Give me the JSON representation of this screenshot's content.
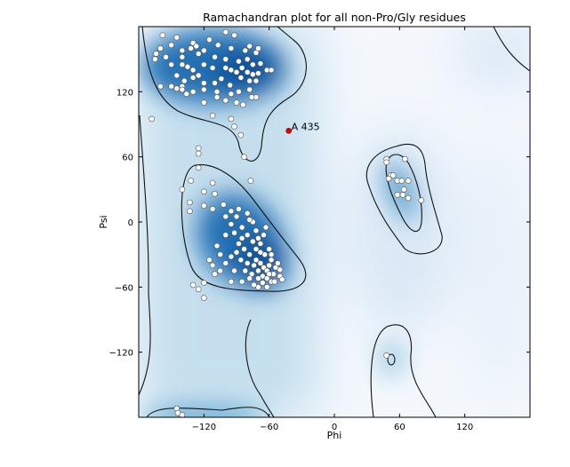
{
  "chart_data": {
    "type": "scatter",
    "title": "Ramachandran plot for all non-Pro/Gly residues",
    "xlabel": "Phi",
    "ylabel": "Psi",
    "xlim": [
      -180,
      180
    ],
    "ylim": [
      -180,
      180
    ],
    "xticks": [
      -120,
      -60,
      0,
      60,
      120
    ],
    "yticks": [
      120,
      60,
      0,
      -60,
      -120
    ],
    "xtick_labels": [
      "−120",
      "−60",
      "0",
      "60",
      "120"
    ],
    "ytick_labels": [
      "120",
      "60",
      "0",
      "−60",
      "−120"
    ],
    "grid": false,
    "background": "density heatmap (Blues) with contour lines",
    "colors": {
      "point_fill": "#ffffff",
      "point_edge": "#555555",
      "outlier": "#e00000",
      "heat": "#08519c",
      "contour": "#000000"
    },
    "outliers": [
      {
        "label": "A 435",
        "phi": -42,
        "psi": 84
      }
    ],
    "points": [
      [
        -158,
        172
      ],
      [
        -145,
        170
      ],
      [
        -130,
        165
      ],
      [
        -115,
        168
      ],
      [
        -92,
        172
      ],
      [
        -100,
        175
      ],
      [
        -160,
        160
      ],
      [
        -150,
        163
      ],
      [
        -140,
        158
      ],
      [
        -132,
        160
      ],
      [
        -127,
        162
      ],
      [
        -120,
        158
      ],
      [
        -107,
        163
      ],
      [
        -95,
        160
      ],
      [
        -82,
        158
      ],
      [
        -72,
        156
      ],
      [
        -70,
        160
      ],
      [
        -78,
        162
      ],
      [
        -164,
        155
      ],
      [
        -165,
        150
      ],
      [
        -155,
        152
      ],
      [
        -140,
        152
      ],
      [
        -125,
        155
      ],
      [
        -110,
        152
      ],
      [
        -100,
        150
      ],
      [
        -88,
        148
      ],
      [
        -80,
        150
      ],
      [
        -75,
        145
      ],
      [
        -68,
        146
      ],
      [
        -62,
        140
      ],
      [
        -58,
        140
      ],
      [
        -150,
        145
      ],
      [
        -140,
        145
      ],
      [
        -135,
        143
      ],
      [
        -130,
        140
      ],
      [
        -120,
        145
      ],
      [
        -112,
        142
      ],
      [
        -100,
        142
      ],
      [
        -95,
        140
      ],
      [
        -90,
        138
      ],
      [
        -85,
        142
      ],
      [
        -80,
        138
      ],
      [
        -75,
        136
      ],
      [
        -70,
        137
      ],
      [
        -145,
        135
      ],
      [
        -138,
        130
      ],
      [
        -130,
        133
      ],
      [
        -125,
        135
      ],
      [
        -120,
        128
      ],
      [
        -110,
        128
      ],
      [
        -104,
        132
      ],
      [
        -96,
        126
      ],
      [
        -86,
        133
      ],
      [
        -78,
        130
      ],
      [
        -72,
        130
      ],
      [
        -140,
        125
      ],
      [
        -130,
        120
      ],
      [
        -120,
        122
      ],
      [
        -108,
        120
      ],
      [
        -95,
        118
      ],
      [
        -88,
        120
      ],
      [
        -78,
        122
      ],
      [
        -72,
        115
      ],
      [
        -160,
        125
      ],
      [
        -150,
        125
      ],
      [
        -145,
        123
      ],
      [
        -140,
        122
      ],
      [
        -136,
        118
      ],
      [
        -120,
        110
      ],
      [
        -108,
        115
      ],
      [
        -100,
        112
      ],
      [
        -90,
        110
      ],
      [
        -84,
        108
      ],
      [
        -76,
        115
      ],
      [
        -112,
        98
      ],
      [
        -95,
        95
      ],
      [
        -92,
        88
      ],
      [
        -86,
        80
      ],
      [
        -168,
        95
      ],
      [
        -83,
        60
      ],
      [
        -125,
        68
      ],
      [
        -125,
        63
      ],
      [
        -125,
        50
      ],
      [
        -77,
        38
      ],
      [
        -132,
        38
      ],
      [
        -112,
        36
      ],
      [
        -140,
        30
      ],
      [
        -120,
        28
      ],
      [
        -110,
        26
      ],
      [
        -133,
        18
      ],
      [
        -120,
        15
      ],
      [
        -133,
        10
      ],
      [
        -112,
        12
      ],
      [
        -102,
        16
      ],
      [
        -95,
        10
      ],
      [
        -100,
        5
      ],
      [
        -90,
        5
      ],
      [
        -88,
        12
      ],
      [
        -80,
        8
      ],
      [
        -75,
        0
      ],
      [
        -130,
        -58
      ],
      [
        -125,
        -62
      ],
      [
        -120,
        -56
      ],
      [
        -120,
        -70
      ],
      [
        -85,
        -55
      ],
      [
        -70,
        -60
      ],
      [
        -58,
        -55
      ],
      [
        -50,
        -50
      ],
      [
        -48,
        -53
      ],
      [
        -92,
        -45
      ],
      [
        -100,
        -38
      ],
      [
        -105,
        -45
      ],
      [
        -95,
        -32
      ],
      [
        -83,
        -25
      ],
      [
        -75,
        -18
      ],
      [
        -68,
        -20
      ],
      [
        -60,
        -25
      ],
      [
        -78,
        -30
      ],
      [
        -88,
        -20
      ],
      [
        -92,
        -10
      ],
      [
        -100,
        -12
      ],
      [
        -95,
        -2
      ],
      [
        -85,
        -5
      ],
      [
        -80,
        -12
      ],
      [
        -72,
        -8
      ],
      [
        -65,
        -12
      ],
      [
        -63,
        -5
      ],
      [
        -78,
        2
      ],
      [
        -108,
        -22
      ],
      [
        -115,
        -35
      ],
      [
        -112,
        -40
      ],
      [
        -72,
        -35
      ],
      [
        -68,
        -38
      ],
      [
        -65,
        -42
      ],
      [
        -62,
        -45
      ],
      [
        -60,
        -40
      ],
      [
        -58,
        -35
      ],
      [
        -70,
        -45
      ],
      [
        -66,
        -50
      ],
      [
        -62,
        -52
      ],
      [
        -56,
        -48
      ],
      [
        -54,
        -42
      ],
      [
        -74,
        -40
      ],
      [
        -76,
        -48
      ],
      [
        -70,
        -52
      ],
      [
        -64,
        -30
      ],
      [
        -58,
        -30
      ],
      [
        -52,
        -38
      ],
      [
        -50,
        -44
      ],
      [
        -80,
        -38
      ],
      [
        -68,
        -28
      ],
      [
        -72,
        -25
      ],
      [
        -66,
        -56
      ],
      [
        -55,
        -55
      ],
      [
        -60,
        -48
      ],
      [
        -78,
        -52
      ],
      [
        -82,
        -45
      ],
      [
        -74,
        -58
      ],
      [
        -62,
        -60
      ],
      [
        -86,
        -35
      ],
      [
        -90,
        -28
      ],
      [
        -85,
        -15
      ],
      [
        -70,
        -15
      ],
      [
        -105,
        -30
      ],
      [
        -110,
        -48
      ],
      [
        -95,
        -55
      ],
      [
        48,
        58
      ],
      [
        48,
        55
      ],
      [
        65,
        58
      ],
      [
        52,
        43
      ],
      [
        50,
        40
      ],
      [
        58,
        38
      ],
      [
        62,
        38
      ],
      [
        68,
        38
      ],
      [
        58,
        25
      ],
      [
        64,
        30
      ],
      [
        63,
        25
      ],
      [
        68,
        22
      ],
      [
        80,
        20
      ],
      [
        54,
        43
      ],
      [
        48,
        -123
      ],
      [
        -145,
        -172
      ],
      [
        -144,
        -176
      ],
      [
        -140,
        -178
      ]
    ]
  }
}
